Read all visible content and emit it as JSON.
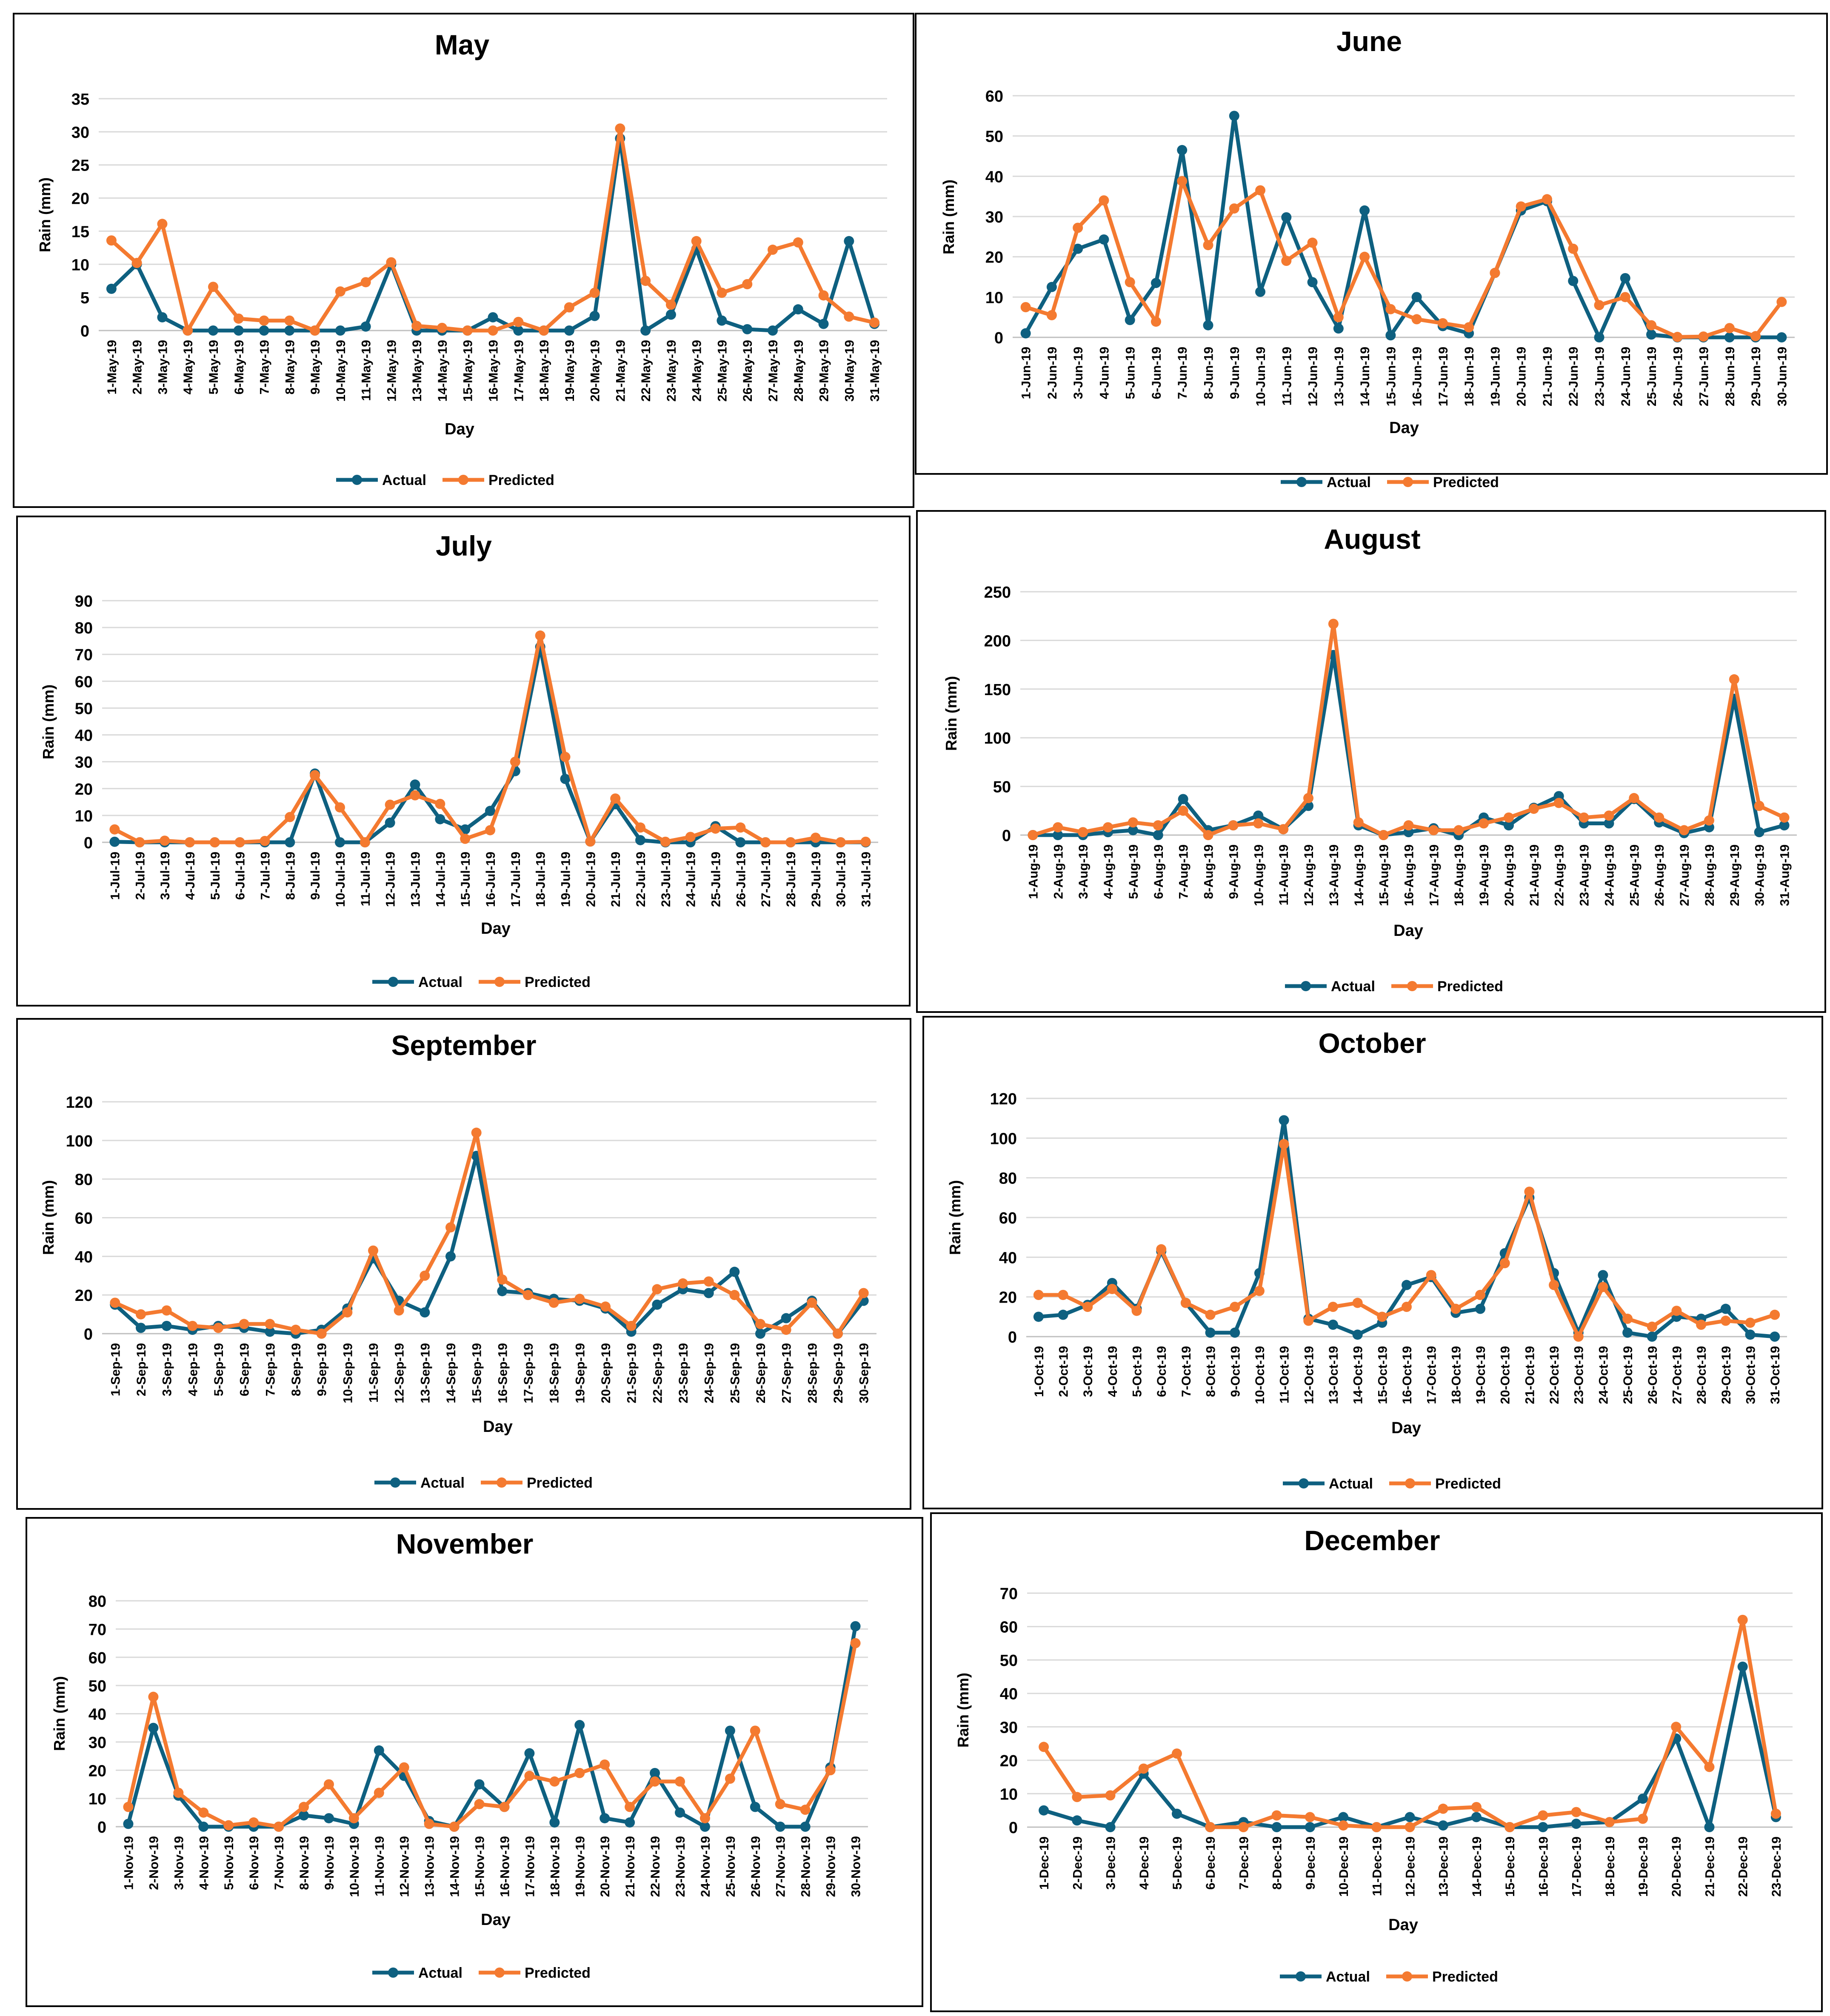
{
  "colors": {
    "actual": "#0e6080",
    "predicted": "#f47a30",
    "grid": "#d9d9d9",
    "text": "#000000",
    "frame": "#000000"
  },
  "legend": {
    "actual": "Actual",
    "predicted": "Predicted"
  },
  "chart_data": [
    {
      "type": "line",
      "title": "May",
      "xlabel": "Day",
      "ylabel": "Rain (mm)",
      "ylim": [
        0,
        35
      ],
      "ytick_step": 5,
      "categories": [
        "1-May-19",
        "2-May-19",
        "3-May-19",
        "4-May-19",
        "5-May-19",
        "6-May-19",
        "7-May-19",
        "8-May-19",
        "9-May-19",
        "10-May-19",
        "11-May-19",
        "12-May-19",
        "13-May-19",
        "14-May-19",
        "15-May-19",
        "16-May-19",
        "17-May-19",
        "18-May-19",
        "19-May-19",
        "20-May-19",
        "21-May-19",
        "22-May-19",
        "23-May-19",
        "24-May-19",
        "25-May-19",
        "26-May-19",
        "27-May-19",
        "28-May-19",
        "29-May-19",
        "30-May-19",
        "31-May-19"
      ],
      "series": [
        {
          "name": "Actual",
          "values": [
            6.3,
            10,
            2,
            0,
            0,
            0,
            0,
            0,
            0,
            0,
            0.6,
            10,
            0,
            0,
            0,
            2,
            0,
            0,
            0,
            2.2,
            29,
            0,
            2.4,
            12.3,
            1.5,
            0.2,
            0,
            3.2,
            1,
            13.5,
            1
          ]
        },
        {
          "name": "Predicted",
          "values": [
            13.6,
            10.2,
            16.1,
            0,
            6.6,
            1.8,
            1.5,
            1.5,
            0,
            5.9,
            7.3,
            10.3,
            0.7,
            0.4,
            0,
            0,
            1.3,
            0,
            3.5,
            5.7,
            30.5,
            7.5,
            3.9,
            13.5,
            5.7,
            7,
            12.2,
            13.3,
            5.3,
            2.1,
            1.2
          ]
        }
      ]
    },
    {
      "type": "line",
      "title": "June",
      "xlabel": "Day",
      "ylabel": "Rain (mm)",
      "ylim": [
        0,
        60
      ],
      "ytick_step": 10,
      "categories": [
        "1-Jun-19",
        "2-Jun-19",
        "3-Jun-19",
        "4-Jun-19",
        "5-Jun-19",
        "6-Jun-19",
        "7-Jun-19",
        "8-Jun-19",
        "9-Jun-19",
        "10-Jun-19",
        "11-Jun-19",
        "12-Jun-19",
        "13-Jun-19",
        "14-Jun-19",
        "15-Jun-19",
        "16-Jun-19",
        "17-Jun-19",
        "18-Jun-19",
        "19-Jun-19",
        "20-Jun-19",
        "21-Jun-19",
        "22-Jun-19",
        "23-Jun-19",
        "24-Jun-19",
        "25-Jun-19",
        "26-Jun-19",
        "27-Jun-19",
        "28-Jun-19",
        "29-Jun-19",
        "30-Jun-19"
      ],
      "series": [
        {
          "name": "Actual",
          "values": [
            1,
            12.5,
            22,
            24.3,
            4.3,
            13.5,
            46.5,
            3,
            55,
            11.3,
            29.8,
            13.7,
            2.2,
            31.5,
            0.5,
            10,
            2.8,
            1,
            16,
            31.5,
            33.8,
            14,
            0,
            14.7,
            0.7,
            0,
            0,
            0,
            0,
            0
          ]
        },
        {
          "name": "Predicted",
          "values": [
            7.5,
            5.5,
            27.2,
            34,
            13.7,
            3.9,
            38.8,
            22.9,
            32,
            36.5,
            19,
            23.5,
            5,
            20,
            7,
            4.5,
            3.5,
            2.5,
            16,
            32.5,
            34.3,
            22,
            8,
            10,
            3,
            0.1,
            0.2,
            2.3,
            0.3,
            8.8
          ]
        }
      ]
    },
    {
      "type": "line",
      "title": "July",
      "xlabel": "Day",
      "ylabel": "Rain (mm)",
      "ylim": [
        0,
        90
      ],
      "ytick_step": 10,
      "categories": [
        "1-Jul-19",
        "2-Jul-19",
        "3-Jul-19",
        "4-Jul-19",
        "5-Jul-19",
        "6-Jul-19",
        "7-Jul-19",
        "8-Jul-19",
        "9-Jul-19",
        "10-Jul-19",
        "11-Jul-19",
        "12-Jul-19",
        "13-Jul-19",
        "14-Jul-19",
        "15-Jul-19",
        "16-Jul-19",
        "17-Jul-19",
        "18-Jul-19",
        "19-Jul-19",
        "20-Jul-19",
        "21-Jul-19",
        "22-Jul-19",
        "23-Jul-19",
        "24-Jul-19",
        "25-Jul-19",
        "26-Jul-19",
        "27-Jul-19",
        "28-Jul-19",
        "29-Jul-19",
        "30-Jul-19",
        "31-Jul-19"
      ],
      "series": [
        {
          "name": "Actual",
          "values": [
            0.2,
            0,
            0,
            0,
            0,
            0,
            0,
            0,
            25.6,
            0,
            0,
            7.3,
            21.5,
            8.6,
            4.8,
            11.7,
            26.5,
            72.8,
            23.6,
            0.3,
            14.2,
            0.8,
            0,
            0,
            6,
            0,
            0,
            0,
            0,
            0,
            0
          ]
        },
        {
          "name": "Predicted",
          "values": [
            4.8,
            0,
            0.6,
            0,
            0,
            0,
            0.5,
            9.4,
            25,
            13,
            0,
            14,
            17.5,
            14.3,
            1.3,
            4.5,
            30,
            77,
            31.8,
            0.3,
            16.3,
            5.5,
            0.2,
            2,
            5.1,
            5.5,
            0,
            0,
            1.7,
            0,
            0.2
          ]
        }
      ]
    },
    {
      "type": "line",
      "title": "August",
      "xlabel": "Day",
      "ylabel": "Rain (mm)",
      "ylim": [
        0,
        250
      ],
      "ytick_step": 50,
      "categories": [
        "1-Aug-19",
        "2-Aug-19",
        "3-Aug-19",
        "4-Aug-19",
        "5-Aug-19",
        "6-Aug-19",
        "7-Aug-19",
        "8-Aug-19",
        "9-Aug-19",
        "10-Aug-19",
        "11-Aug-19",
        "12-Aug-19",
        "13-Aug-19",
        "14-Aug-19",
        "15-Aug-19",
        "16-Aug-19",
        "17-Aug-19",
        "18-Aug-19",
        "19-Aug-19",
        "20-Aug-19",
        "21-Aug-19",
        "22-Aug-19",
        "23-Aug-19",
        "24-Aug-19",
        "25-Aug-19",
        "26-Aug-19",
        "27-Aug-19",
        "28-Aug-19",
        "29-Aug-19",
        "30-Aug-19",
        "31-Aug-19"
      ],
      "series": [
        {
          "name": "Actual",
          "values": [
            0,
            0,
            0,
            3,
            5,
            0,
            37,
            5,
            10,
            20,
            6,
            30,
            185,
            10,
            0,
            3,
            7,
            0,
            18,
            10,
            28,
            40,
            12,
            12,
            37,
            13,
            2,
            8,
            140,
            3,
            10
          ]
        },
        {
          "name": "Predicted",
          "values": [
            0,
            8,
            3,
            8,
            13,
            10,
            25,
            0,
            10,
            12,
            6,
            38,
            217,
            13,
            0,
            10,
            5,
            5,
            12,
            18,
            27,
            33,
            18,
            20,
            38,
            18,
            5,
            15,
            160,
            30,
            18
          ]
        }
      ]
    },
    {
      "type": "line",
      "title": "September",
      "xlabel": "Day",
      "ylabel": "Rain (mm)",
      "ylim": [
        0,
        120
      ],
      "ytick_step": 20,
      "categories": [
        "1-Sep-19",
        "2-Sep-19",
        "3-Sep-19",
        "4-Sep-19",
        "5-Sep-19",
        "6-Sep-19",
        "7-Sep-19",
        "8-Sep-19",
        "9-Sep-19",
        "10-Sep-19",
        "11-Sep-19",
        "12-Sep-19",
        "13-Sep-19",
        "14-Sep-19",
        "15-Sep-19",
        "16-Sep-19",
        "17-Sep-19",
        "18-Sep-19",
        "19-Sep-19",
        "20-Sep-19",
        "21-Sep-19",
        "22-Sep-19",
        "23-Sep-19",
        "24-Sep-19",
        "25-Sep-19",
        "26-Sep-19",
        "27-Sep-19",
        "28-Sep-19",
        "29-Sep-19",
        "30-Sep-19"
      ],
      "series": [
        {
          "name": "Actual",
          "values": [
            15,
            3,
            4,
            2,
            4,
            3,
            1,
            0,
            2,
            13,
            39,
            17,
            11,
            40,
            92,
            22,
            21,
            18,
            17,
            13,
            1,
            15,
            23,
            21,
            32,
            0,
            8,
            17,
            0,
            17
          ]
        },
        {
          "name": "Predicted",
          "values": [
            16,
            10,
            12,
            4,
            3,
            5,
            5,
            2,
            0,
            11,
            43,
            12,
            30,
            55,
            104,
            28,
            20,
            16,
            18,
            14,
            4,
            23,
            26,
            27,
            20,
            5,
            2,
            16,
            0,
            21
          ]
        }
      ]
    },
    {
      "type": "line",
      "title": "October",
      "xlabel": "Day",
      "ylabel": "Rain (mm)",
      "ylim": [
        0,
        120
      ],
      "ytick_step": 20,
      "categories": [
        "1-Oct-19",
        "2-Oct-19",
        "3-Oct-19",
        "4-Oct-19",
        "5-Oct-19",
        "6-Oct-19",
        "7-Oct-19",
        "8-Oct-19",
        "9-Oct-19",
        "10-Oct-19",
        "11-Oct-19",
        "12-Oct-19",
        "13-Oct-19",
        "14-Oct-19",
        "15-Oct-19",
        "16-Oct-19",
        "17-Oct-19",
        "18-Oct-19",
        "19-Oct-19",
        "20-Oct-19",
        "21-Oct-19",
        "22-Oct-19",
        "23-Oct-19",
        "24-Oct-19",
        "25-Oct-19",
        "26-Oct-19",
        "27-Oct-19",
        "28-Oct-19",
        "29-Oct-19",
        "30-Oct-19",
        "31-Oct-19"
      ],
      "series": [
        {
          "name": "Actual",
          "values": [
            10,
            11,
            16,
            27,
            14,
            43,
            17,
            2,
            2,
            32,
            109,
            9,
            6,
            1,
            7,
            26,
            30,
            12,
            14,
            42,
            70,
            32,
            2,
            31,
            2,
            0,
            10,
            9,
            14,
            1,
            0
          ]
        },
        {
          "name": "Predicted",
          "values": [
            21,
            21,
            15,
            24,
            13,
            44,
            17,
            11,
            15,
            23,
            97,
            8,
            15,
            17,
            10,
            15,
            31,
            14,
            21,
            37,
            73,
            26,
            0,
            25,
            9,
            5,
            13,
            6,
            8,
            7,
            11
          ]
        }
      ]
    },
    {
      "type": "line",
      "title": "November",
      "xlabel": "Day",
      "ylabel": "Rain (mm)",
      "ylim": [
        0,
        80
      ],
      "ytick_step": 10,
      "categories": [
        "1-Nov-19",
        "2-Nov-19",
        "3-Nov-19",
        "4-Nov-19",
        "5-Nov-19",
        "6-Nov-19",
        "7-Nov-19",
        "8-Nov-19",
        "9-Nov-19",
        "10-Nov-19",
        "11-Nov-19",
        "12-Nov-19",
        "13-Nov-19",
        "14-Nov-19",
        "15-Nov-19",
        "16-Nov-19",
        "17-Nov-19",
        "18-Nov-19",
        "19-Nov-19",
        "20-Nov-19",
        "21-Nov-19",
        "22-Nov-19",
        "23-Nov-19",
        "24-Nov-19",
        "25-Nov-19",
        "26-Nov-19",
        "27-Nov-19",
        "28-Nov-19",
        "29-Nov-19",
        "30-Nov-19"
      ],
      "series": [
        {
          "name": "Actual",
          "values": [
            1,
            35,
            11,
            0,
            0,
            0,
            0,
            4,
            3,
            1,
            27,
            18,
            2,
            0,
            15,
            7,
            26,
            1.5,
            36,
            3,
            1.5,
            19,
            5,
            0,
            34,
            7,
            0,
            0,
            21,
            71
          ]
        },
        {
          "name": "Predicted",
          "values": [
            7,
            46,
            12,
            5,
            0.5,
            1.5,
            0,
            7,
            15,
            3,
            12,
            21,
            1,
            0,
            8,
            7,
            18,
            16,
            19,
            22,
            7,
            16,
            16,
            3,
            17,
            34,
            8,
            6,
            20,
            65
          ]
        }
      ]
    },
    {
      "type": "line",
      "title": "December",
      "xlabel": "Day",
      "ylabel": "Rain (mm)",
      "ylim": [
        0,
        70
      ],
      "ytick_step": 10,
      "categories": [
        "1-Dec-19",
        "2-Dec-19",
        "3-Dec-19",
        "4-Dec-19",
        "5-Dec-19",
        "6-Dec-19",
        "7-Dec-19",
        "8-Dec-19",
        "9-Dec-19",
        "10-Dec-19",
        "11-Dec-19",
        "12-Dec-19",
        "13-Dec-19",
        "14-Dec-19",
        "15-Dec-19",
        "16-Dec-19",
        "17-Dec-19",
        "18-Dec-19",
        "19-Dec-19",
        "20-Dec-19",
        "21-Dec-19",
        "22-Dec-19",
        "23-Dec-19"
      ],
      "series": [
        {
          "name": "Actual",
          "values": [
            5,
            2,
            0,
            16,
            4,
            0,
            1.5,
            0,
            0,
            3,
            0,
            3,
            0.5,
            3,
            0,
            0,
            1,
            1.5,
            8.5,
            26.5,
            0,
            48,
            3
          ]
        },
        {
          "name": "Predicted",
          "values": [
            24,
            9,
            9.5,
            17.5,
            22,
            0,
            0,
            3.5,
            3,
            0.5,
            0,
            0,
            5.5,
            6,
            0,
            3.5,
            4.5,
            1.5,
            2.5,
            30,
            18,
            62,
            4
          ]
        }
      ]
    }
  ]
}
